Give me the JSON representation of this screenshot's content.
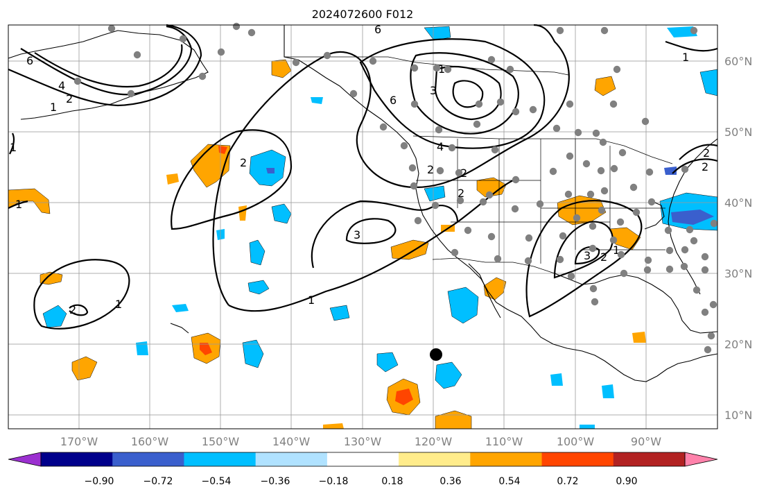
{
  "title": "2024072600 F012",
  "longitude_labels": [
    "170°W",
    "160°W",
    "150°W",
    "140°W",
    "130°W",
    "120°W",
    "110°W",
    "100°W",
    "90°W"
  ],
  "latitude_labels": [
    "60°N",
    "50°N",
    "40°N",
    "30°N",
    "20°N",
    "10°N"
  ],
  "colorbar": {
    "ticks": [
      "−0.90",
      "−0.72",
      "−0.54",
      "−0.36",
      "−0.18",
      "0.18",
      "0.36",
      "0.54",
      "0.72",
      "0.90"
    ],
    "colors": [
      "#9b30d0",
      "#00008b",
      "#3a5fcd",
      "#00bfff",
      "#b0e2ff",
      "#ffffff",
      "#ffec8b",
      "#ffa500",
      "#ff4500",
      "#b22222",
      "#ff82ab"
    ]
  },
  "contour_labels": [
    "6",
    "4",
    "2",
    "1",
    "1",
    "6",
    "3",
    "6",
    "4",
    "2",
    "2",
    "2",
    "1",
    "3",
    "2",
    "1",
    "2",
    "1",
    "3",
    "2",
    "2",
    "1",
    "1",
    "1",
    "2"
  ],
  "colors": {
    "station": "#808080",
    "gridline": "#9a9a9a",
    "marker": "#000000"
  }
}
